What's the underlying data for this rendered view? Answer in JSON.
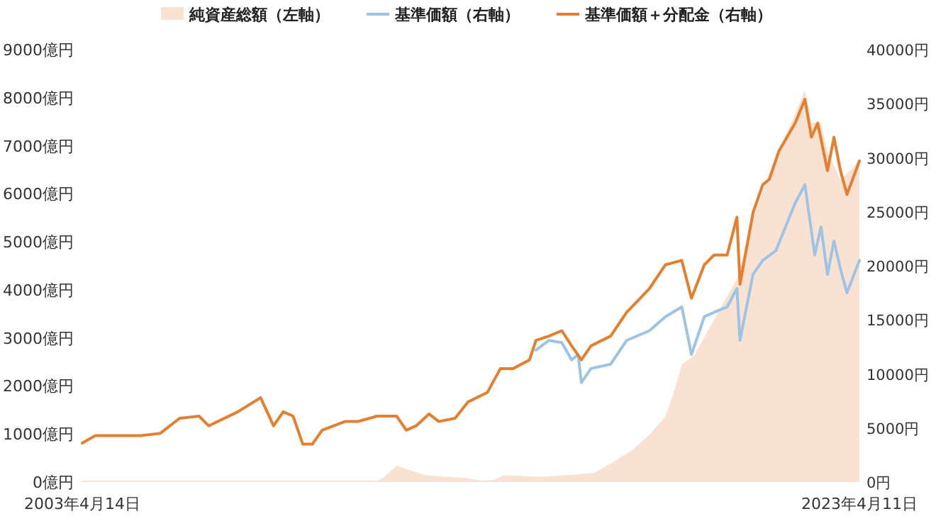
{
  "chart_data": {
    "type": "line",
    "xlim": [
      "2003-04-14",
      "2023-04-11"
    ],
    "xticks": [
      {
        "value": "2003-04-14",
        "label": "2003年4月14日"
      },
      {
        "value": "2023-04-11",
        "label": "2023年4月11日"
      }
    ],
    "ylim": [
      0,
      9000
    ],
    "yticks": [
      {
        "value": 0,
        "label": "0億円"
      },
      {
        "value": 1000,
        "label": "1000億円"
      },
      {
        "value": 2000,
        "label": "2000億円"
      },
      {
        "value": 3000,
        "label": "3000億円"
      },
      {
        "value": 4000,
        "label": "4000億円"
      },
      {
        "value": 5000,
        "label": "5000億円"
      },
      {
        "value": 6000,
        "label": "6000億円"
      },
      {
        "value": 7000,
        "label": "7000億円"
      },
      {
        "value": 8000,
        "label": "8000億円"
      },
      {
        "value": 9000,
        "label": "9000億円"
      }
    ],
    "y2lim": [
      0,
      40000
    ],
    "y2ticks": [
      {
        "value": 0,
        "label": "0円"
      },
      {
        "value": 5000,
        "label": "5000円"
      },
      {
        "value": 10000,
        "label": "10000円"
      },
      {
        "value": 15000,
        "label": "15000円"
      },
      {
        "value": 20000,
        "label": "20000円"
      },
      {
        "value": 25000,
        "label": "25000円"
      },
      {
        "value": 30000,
        "label": "30000円"
      },
      {
        "value": 35000,
        "label": "35000円"
      },
      {
        "value": 40000,
        "label": "40000円"
      }
    ],
    "legend": "top",
    "grid": false,
    "series": [
      {
        "name": "純資産総額（左軸）",
        "type": "area",
        "color": "#f9e2d2",
        "x": [
          "2003-04-14",
          "2010-11",
          "2011-01",
          "2011-05",
          "2012-02",
          "2013-02",
          "2013-07",
          "2013-11",
          "2014-02",
          "2015-01",
          "2015-09",
          "2016-06",
          "2016-11",
          "2017-06",
          "2017-11",
          "2018-04",
          "2018-07",
          "2018-09",
          "2019-01",
          "2019-05",
          "2019-09",
          "2020-02",
          "2020-07",
          "2020-11",
          "2021-03",
          "2021-08",
          "2021-11",
          "2022-01",
          "2022-04",
          "2022-06",
          "2022-10",
          "2023-01",
          "2023-04-11"
        ],
        "values": [
          30,
          30,
          100,
          340,
          140,
          90,
          30,
          40,
          140,
          110,
          140,
          190,
          380,
          680,
          980,
          1370,
          1960,
          2450,
          2650,
          3140,
          3630,
          4220,
          5500,
          6200,
          6880,
          7670,
          8160,
          7480,
          7480,
          6880,
          6290,
          6490,
          6700
        ]
      },
      {
        "name": "基準価額（右軸）",
        "type": "line",
        "axis": "y2",
        "color": "#9dc3e6",
        "x": [
          "2014-12",
          "2015-04",
          "2015-08",
          "2015-11",
          "2016-01",
          "2016-02",
          "2016-05",
          "2016-11",
          "2017-04",
          "2017-11",
          "2018-04",
          "2018-09",
          "2018-12",
          "2019-04",
          "2019-07",
          "2019-11",
          "2020-02",
          "2020-03",
          "2020-07",
          "2020-10",
          "2021-02",
          "2021-08",
          "2021-11",
          "2022-02",
          "2022-04",
          "2022-06",
          "2022-08",
          "2022-10",
          "2022-12",
          "2023-04-11"
        ],
        "values": [
          12200,
          13100,
          12900,
          11300,
          11800,
          9200,
          10500,
          10900,
          13100,
          14000,
          15300,
          16200,
          11800,
          15300,
          15700,
          16200,
          17900,
          13100,
          19200,
          20500,
          21400,
          25800,
          27500,
          21000,
          23600,
          19200,
          22300,
          19700,
          17500,
          20500
        ]
      },
      {
        "name": "基準価額＋分配金（右軸）",
        "type": "line",
        "axis": "y2",
        "color": "#e47f30",
        "x": [
          "2003-04-14",
          "2003-08",
          "2004-05",
          "2004-10",
          "2005-04",
          "2005-10",
          "2006-04",
          "2006-07",
          "2007-04",
          "2007-11",
          "2008-01",
          "2008-03",
          "2008-06",
          "2008-09",
          "2008-12",
          "2009-03",
          "2009-06",
          "2010-01",
          "2010-05",
          "2010-11",
          "2011-05",
          "2011-08",
          "2011-11",
          "2012-03",
          "2012-06",
          "2012-11",
          "2013-03",
          "2013-09",
          "2014-01",
          "2014-05",
          "2014-10",
          "2014-12",
          "2015-04",
          "2015-08",
          "2015-11",
          "2016-02",
          "2016-05",
          "2016-11",
          "2017-04",
          "2017-11",
          "2018-04",
          "2018-09",
          "2018-12",
          "2019-04",
          "2019-07",
          "2019-11",
          "2020-02",
          "2020-03",
          "2020-07",
          "2020-10",
          "2020-12",
          "2021-03",
          "2021-08",
          "2021-11",
          "2022-01",
          "2022-03",
          "2022-06",
          "2022-08",
          "2022-10",
          "2022-12",
          "2023-04-11"
        ],
        "values": [
          3600,
          4300,
          4300,
          4300,
          4500,
          5900,
          6100,
          5200,
          6500,
          7800,
          6500,
          5200,
          6500,
          6100,
          3500,
          3500,
          4800,
          5600,
          5600,
          6100,
          6100,
          4800,
          5200,
          6300,
          5600,
          5900,
          7400,
          8300,
          10500,
          10500,
          11300,
          13100,
          13500,
          14000,
          12600,
          11300,
          12600,
          13500,
          15700,
          17900,
          20100,
          20500,
          17000,
          20100,
          21000,
          21000,
          24500,
          18300,
          24900,
          27500,
          28000,
          30600,
          33200,
          35400,
          31900,
          33200,
          28800,
          31900,
          28800,
          26600,
          29700
        ]
      }
    ]
  }
}
